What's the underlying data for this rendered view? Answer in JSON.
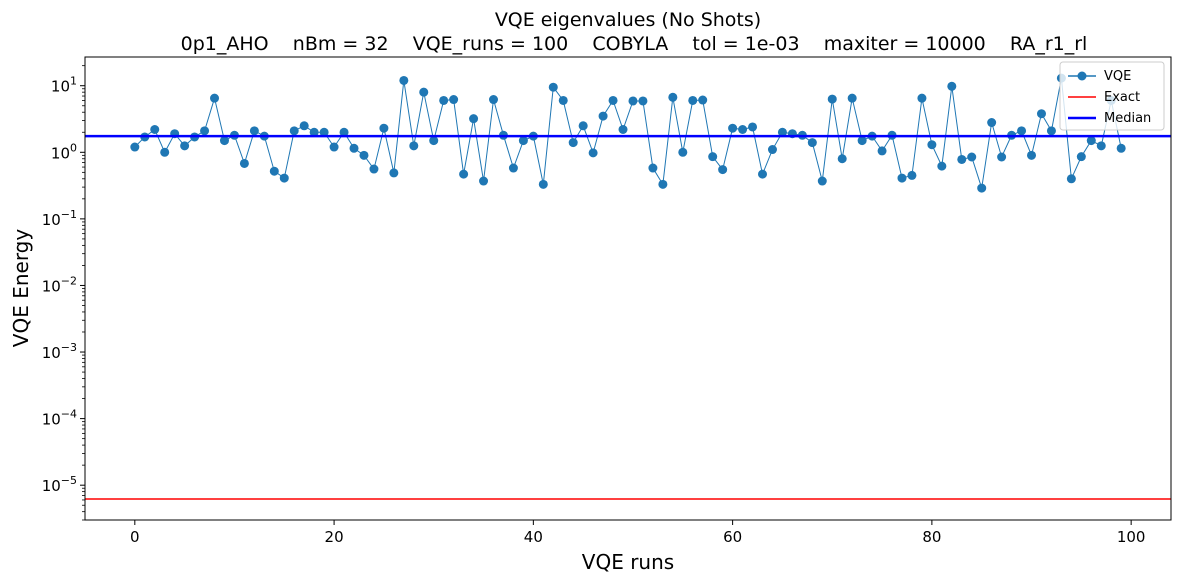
{
  "chart_data": {
    "type": "line",
    "title": "VQE eigenvalues (No Shots)",
    "subtitle": "0p1_AHO    nBm = 32    VQE_runs = 100    COBYLA    tol = 1e-03    maxiter = 10000    RA_r1_rl",
    "xlabel": "VQE runs",
    "ylabel": "VQE Energy",
    "yscale": "log",
    "xlim": [
      -5,
      104
    ],
    "ylim": [
      3e-06,
      27
    ],
    "xticks": [
      0,
      20,
      40,
      60,
      80,
      100
    ],
    "yticks": [
      {
        "base": "10",
        "exp": "1",
        "value": 10
      },
      {
        "base": "10",
        "exp": "0",
        "value": 1
      },
      {
        "base": "10",
        "exp": "−1",
        "value": 0.1
      },
      {
        "base": "10",
        "exp": "−2",
        "value": 0.01
      },
      {
        "base": "10",
        "exp": "−3",
        "value": 0.001
      },
      {
        "base": "10",
        "exp": "−4",
        "value": 0.0001
      },
      {
        "base": "10",
        "exp": "−5",
        "value": 1e-05
      }
    ],
    "grid": false,
    "legend_position": "top-right",
    "series": [
      {
        "name": "VQE",
        "color": "#1f77b4",
        "marker": "circle",
        "x": [
          0,
          1,
          2,
          3,
          4,
          5,
          6,
          7,
          8,
          9,
          10,
          11,
          12,
          13,
          14,
          15,
          16,
          17,
          18,
          19,
          20,
          21,
          22,
          23,
          24,
          25,
          26,
          27,
          28,
          29,
          30,
          31,
          32,
          33,
          34,
          35,
          36,
          37,
          38,
          39,
          40,
          41,
          42,
          43,
          44,
          45,
          46,
          47,
          48,
          49,
          50,
          51,
          52,
          53,
          54,
          55,
          56,
          57,
          58,
          59,
          60,
          61,
          62,
          63,
          64,
          65,
          66,
          67,
          68,
          69,
          70,
          71,
          72,
          73,
          74,
          75,
          76,
          77,
          78,
          79,
          80,
          81,
          82,
          83,
          84,
          85,
          86,
          87,
          88,
          89,
          90,
          91,
          92,
          93,
          94,
          95,
          96,
          97,
          98,
          99
        ],
        "y": [
          1.2,
          1.7,
          2.2,
          1.0,
          1.9,
          1.25,
          1.7,
          2.1,
          6.5,
          1.5,
          1.8,
          0.68,
          2.1,
          1.75,
          0.52,
          0.41,
          2.1,
          2.5,
          2.0,
          2.0,
          1.2,
          2.0,
          1.15,
          0.9,
          0.56,
          2.3,
          0.49,
          12.0,
          1.25,
          8.0,
          1.5,
          6.0,
          6.2,
          0.47,
          3.2,
          0.37,
          6.2,
          1.8,
          0.58,
          1.5,
          1.75,
          0.33,
          9.5,
          6.0,
          1.4,
          2.5,
          0.98,
          3.5,
          6.0,
          2.2,
          5.9,
          5.9,
          0.58,
          0.33,
          6.7,
          1.0,
          6.0,
          6.1,
          0.86,
          0.55,
          2.3,
          2.2,
          2.4,
          0.47,
          1.1,
          2.0,
          1.9,
          1.8,
          1.4,
          0.37,
          6.3,
          0.8,
          6.5,
          1.5,
          1.75,
          1.05,
          1.8,
          0.41,
          0.45,
          6.5,
          1.3,
          0.62,
          9.8,
          0.78,
          0.85,
          0.29,
          2.8,
          0.85,
          1.8,
          2.1,
          0.9,
          3.8,
          2.1,
          13.0,
          0.4,
          0.86,
          1.5,
          1.25,
          6.0,
          1.15
        ]
      },
      {
        "name": "Exact",
        "color": "#ff0000",
        "value": 6.2e-06
      },
      {
        "name": "Median",
        "color": "#0000ff",
        "value": 1.75
      }
    ]
  }
}
